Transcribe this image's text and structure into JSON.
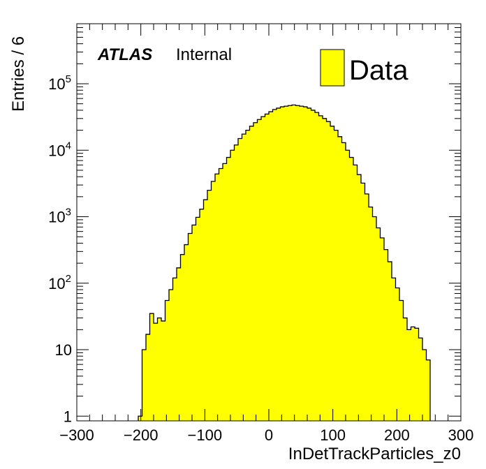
{
  "chart_data": {
    "type": "bar",
    "xlabel": "InDetTrackParticles_z0",
    "ylabel": "Entries / 6",
    "xlim": [
      -300,
      300
    ],
    "ylim": [
      0.85,
      800000
    ],
    "y_scale": "log",
    "x_ticks": [
      -300,
      -200,
      -100,
      0,
      100,
      200,
      300
    ],
    "x_tick_labels": [
      "−300",
      "−200",
      "−100",
      "0",
      "100",
      "200",
      "300"
    ],
    "y_ticks": [
      1,
      10,
      100,
      1000,
      10000,
      100000
    ],
    "y_tick_labels": [
      {
        "base": "1",
        "exp": ""
      },
      {
        "base": "10",
        "exp": ""
      },
      {
        "base": "10",
        "exp": "2"
      },
      {
        "base": "10",
        "exp": "3"
      },
      {
        "base": "10",
        "exp": "4"
      },
      {
        "base": "10",
        "exp": "5"
      }
    ],
    "annotation": {
      "experiment": "ATLAS",
      "status": "Internal"
    },
    "legend": {
      "placement": "top-right",
      "entries": [
        "Data"
      ]
    },
    "fill_color": "#ffff00",
    "line_color": "#000000",
    "series": [
      {
        "name": "Data",
        "bin_width": 6,
        "x_start": -204,
        "values": [
          1,
          10,
          17,
          35,
          25,
          30,
          27,
          55,
          80,
          120,
          170,
          270,
          380,
          560,
          750,
          980,
          1300,
          1800,
          2500,
          3400,
          4400,
          5300,
          6300,
          7800,
          10000,
          12000,
          15000,
          17500,
          20000,
          23000,
          26000,
          29000,
          32000,
          35000,
          38000,
          41000,
          43000,
          45000,
          46000,
          47000,
          48000,
          47000,
          46000,
          45000,
          43000,
          40000,
          37000,
          33000,
          30000,
          27000,
          23000,
          20000,
          16000,
          13000,
          10000,
          7800,
          6000,
          4300,
          3200,
          2200,
          1400,
          1000,
          680,
          480,
          320,
          210,
          120,
          85,
          55,
          30,
          20,
          22,
          21,
          15,
          10,
          7
        ]
      }
    ]
  }
}
